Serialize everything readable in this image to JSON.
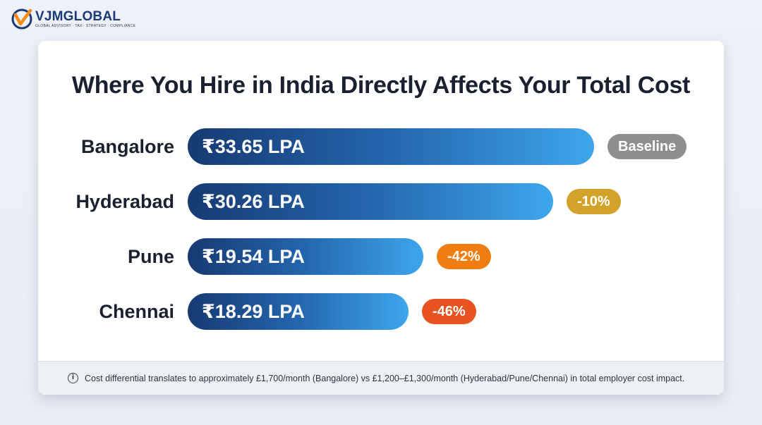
{
  "brand": {
    "name_part1": "VJM",
    "name_part2": "GLOBAL",
    "tagline": "GLOBAL ADVISORY · TAX · STRATEGY · COMPLIANCE"
  },
  "chart_data": {
    "type": "bar",
    "orientation": "horizontal",
    "title": "Where You Hire in India Directly Affects Your Total Cost",
    "categories": [
      "Bangalore",
      "Hyderabad",
      "Pune",
      "Chennai"
    ],
    "values": [
      33.65,
      30.26,
      19.54,
      18.29
    ],
    "value_labels": [
      "₹33.65 LPA",
      "₹30.26 LPA",
      "₹19.54 LPA",
      "₹18.29 LPA"
    ],
    "badges": [
      "Baseline",
      "-10%",
      "-42%",
      "-46%"
    ],
    "badge_colors": [
      "#8e8e8e",
      "#d3a22a",
      "#f07d12",
      "#e8531f"
    ],
    "bar_gradient": [
      "#173a72",
      "#2466ae",
      "#3ea6ec"
    ],
    "xlim": [
      0,
      33.65
    ],
    "grid": false
  },
  "footer": {
    "icon": "info-icon",
    "note": "Cost differential translates to approximately £1,700/month (Bangalore) vs £1,200–£1,300/month (Hyderabad/Pune/Chennai) in total employer cost impact."
  }
}
